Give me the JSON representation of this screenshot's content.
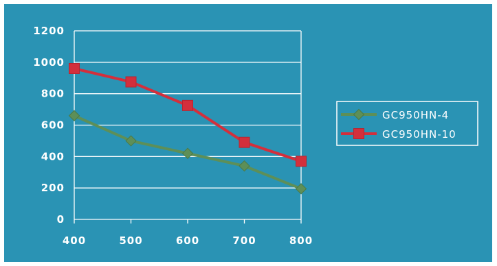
{
  "colors": {
    "background": "#2a93b4",
    "grid": "#ffffff",
    "series_1": "#5d8f58",
    "series_2": "#d32f3c"
  },
  "chart_data": {
    "type": "line",
    "title": "",
    "xlabel": "",
    "ylabel": "",
    "x": [
      400,
      500,
      600,
      700,
      800
    ],
    "xlim": [
      400,
      800
    ],
    "ylim": [
      0,
      1200
    ],
    "yticks": [
      0,
      200,
      400,
      600,
      800,
      1000,
      1200
    ],
    "grid": true,
    "legend_position": "right",
    "series": [
      {
        "name": "GC950HN-4",
        "marker": "diamond",
        "color": "#5d8f58",
        "values": [
          660,
          500,
          420,
          340,
          195
        ]
      },
      {
        "name": "GC950HN-10",
        "marker": "square",
        "color": "#d32f3c",
        "values": [
          960,
          875,
          725,
          490,
          370
        ]
      }
    ]
  }
}
